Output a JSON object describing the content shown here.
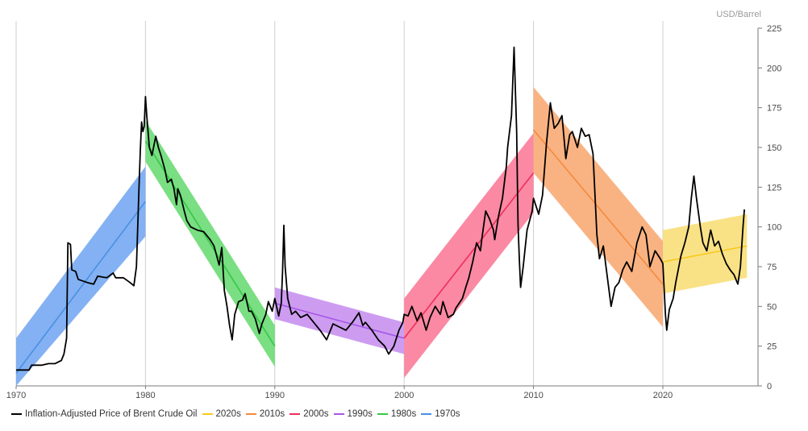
{
  "chart_data": {
    "type": "line",
    "title": "",
    "unit_label": "USD/Barrel",
    "xlabel": "",
    "ylabel": "",
    "xlim": [
      1970,
      2027
    ],
    "ylim": [
      0,
      225
    ],
    "x_ticks": [
      1970,
      1980,
      1990,
      2000,
      2010,
      2020
    ],
    "x_tick_labels": [
      "1970",
      "1980",
      "1990",
      "2000",
      "2010",
      "2020"
    ],
    "y_ticks": [
      0,
      25,
      50,
      75,
      100,
      125,
      150,
      175,
      200,
      225
    ],
    "y_tick_labels": [
      "0",
      "25",
      "50",
      "75",
      "100",
      "125",
      "150",
      "175",
      "200",
      "225"
    ],
    "grid": "vertical",
    "legend_position": "bottom-left",
    "series": [
      {
        "name": "Inflation-Adjusted Price of Brent Crude Oil",
        "color": "#000000",
        "points": [
          [
            1970.0,
            10
          ],
          [
            1971.0,
            10
          ],
          [
            1971.2,
            13
          ],
          [
            1972.0,
            13
          ],
          [
            1972.5,
            14
          ],
          [
            1973.0,
            14
          ],
          [
            1973.5,
            16
          ],
          [
            1973.7,
            20
          ],
          [
            1973.9,
            30
          ],
          [
            1974.0,
            90
          ],
          [
            1974.2,
            89
          ],
          [
            1974.3,
            73
          ],
          [
            1974.6,
            72
          ],
          [
            1974.8,
            67
          ],
          [
            1975.5,
            65
          ],
          [
            1976.0,
            64
          ],
          [
            1976.3,
            69
          ],
          [
            1977.0,
            68
          ],
          [
            1977.5,
            71
          ],
          [
            1977.7,
            68
          ],
          [
            1978.3,
            68
          ],
          [
            1978.8,
            65
          ],
          [
            1979.1,
            63
          ],
          [
            1979.3,
            75
          ],
          [
            1979.5,
            125
          ],
          [
            1979.6,
            148
          ],
          [
            1979.7,
            166
          ],
          [
            1979.8,
            160
          ],
          [
            1979.9,
            163
          ],
          [
            1980.0,
            182
          ],
          [
            1980.1,
            170
          ],
          [
            1980.3,
            150
          ],
          [
            1980.5,
            145
          ],
          [
            1980.8,
            157
          ],
          [
            1981.0,
            150
          ],
          [
            1981.2,
            145
          ],
          [
            1981.5,
            136
          ],
          [
            1981.7,
            128
          ],
          [
            1982.0,
            130
          ],
          [
            1982.2,
            124
          ],
          [
            1982.4,
            114
          ],
          [
            1982.5,
            124
          ],
          [
            1982.7,
            120
          ],
          [
            1983.0,
            110
          ],
          [
            1983.2,
            104
          ],
          [
            1983.5,
            100
          ],
          [
            1984.0,
            98
          ],
          [
            1984.5,
            97
          ],
          [
            1985.0,
            92
          ],
          [
            1985.3,
            88
          ],
          [
            1985.7,
            76
          ],
          [
            1985.9,
            87
          ],
          [
            1986.1,
            60
          ],
          [
            1986.3,
            50
          ],
          [
            1986.5,
            38
          ],
          [
            1986.7,
            29
          ],
          [
            1986.9,
            45
          ],
          [
            1987.2,
            53
          ],
          [
            1987.5,
            54
          ],
          [
            1987.7,
            58
          ],
          [
            1988.0,
            47
          ],
          [
            1988.2,
            47
          ],
          [
            1988.5,
            42
          ],
          [
            1988.8,
            33
          ],
          [
            1989.0,
            39
          ],
          [
            1989.3,
            45
          ],
          [
            1989.5,
            53
          ],
          [
            1989.8,
            47
          ],
          [
            1990.0,
            55
          ],
          [
            1990.3,
            44
          ],
          [
            1990.5,
            52
          ],
          [
            1990.6,
            72
          ],
          [
            1990.7,
            101
          ],
          [
            1990.8,
            75
          ],
          [
            1991.0,
            55
          ],
          [
            1991.3,
            45
          ],
          [
            1991.6,
            47
          ],
          [
            1992.0,
            43
          ],
          [
            1992.5,
            45
          ],
          [
            1993.0,
            40
          ],
          [
            1993.5,
            35
          ],
          [
            1994.0,
            29
          ],
          [
            1994.5,
            39
          ],
          [
            1995.0,
            37
          ],
          [
            1995.5,
            35
          ],
          [
            1996.0,
            40
          ],
          [
            1996.5,
            46
          ],
          [
            1996.8,
            38
          ],
          [
            1997.0,
            40
          ],
          [
            1997.5,
            35
          ],
          [
            1998.0,
            29
          ],
          [
            1998.5,
            25
          ],
          [
            1998.8,
            20
          ],
          [
            1999.2,
            25
          ],
          [
            1999.6,
            35
          ],
          [
            1999.9,
            40
          ],
          [
            2000.0,
            45
          ],
          [
            2000.3,
            44
          ],
          [
            2000.6,
            50
          ],
          [
            2001.0,
            41
          ],
          [
            2001.3,
            46
          ],
          [
            2001.7,
            35
          ],
          [
            2002.0,
            43
          ],
          [
            2002.4,
            50
          ],
          [
            2002.8,
            45
          ],
          [
            2003.0,
            53
          ],
          [
            2003.4,
            43
          ],
          [
            2003.8,
            45
          ],
          [
            2004.0,
            49
          ],
          [
            2004.5,
            55
          ],
          [
            2004.8,
            63
          ],
          [
            2005.0,
            68
          ],
          [
            2005.3,
            78
          ],
          [
            2005.6,
            90
          ],
          [
            2005.9,
            85
          ],
          [
            2006.0,
            92
          ],
          [
            2006.3,
            110
          ],
          [
            2006.6,
            105
          ],
          [
            2006.9,
            98
          ],
          [
            2007.0,
            92
          ],
          [
            2007.3,
            107
          ],
          [
            2007.6,
            118
          ],
          [
            2007.9,
            138
          ],
          [
            2008.0,
            150
          ],
          [
            2008.3,
            170
          ],
          [
            2008.5,
            213
          ],
          [
            2008.7,
            160
          ],
          [
            2008.8,
            102
          ],
          [
            2008.9,
            80
          ],
          [
            2009.0,
            62
          ],
          [
            2009.2,
            75
          ],
          [
            2009.5,
            98
          ],
          [
            2009.9,
            110
          ],
          [
            2010.0,
            118
          ],
          [
            2010.4,
            108
          ],
          [
            2010.7,
            120
          ],
          [
            2011.0,
            152
          ],
          [
            2011.3,
            178
          ],
          [
            2011.6,
            162
          ],
          [
            2011.9,
            165
          ],
          [
            2012.2,
            170
          ],
          [
            2012.5,
            143
          ],
          [
            2012.8,
            158
          ],
          [
            2013.0,
            160
          ],
          [
            2013.4,
            150
          ],
          [
            2013.7,
            162
          ],
          [
            2014.0,
            157
          ],
          [
            2014.3,
            158
          ],
          [
            2014.6,
            146
          ],
          [
            2014.9,
            95
          ],
          [
            2015.1,
            80
          ],
          [
            2015.4,
            88
          ],
          [
            2015.7,
            69
          ],
          [
            2016.0,
            50
          ],
          [
            2016.3,
            62
          ],
          [
            2016.6,
            65
          ],
          [
            2016.9,
            73
          ],
          [
            2017.2,
            78
          ],
          [
            2017.6,
            72
          ],
          [
            2018.0,
            90
          ],
          [
            2018.4,
            100
          ],
          [
            2018.7,
            95
          ],
          [
            2019.0,
            75
          ],
          [
            2019.4,
            85
          ],
          [
            2019.8,
            80
          ],
          [
            2020.0,
            77
          ],
          [
            2020.2,
            45
          ],
          [
            2020.3,
            35
          ],
          [
            2020.5,
            48
          ],
          [
            2020.8,
            55
          ],
          [
            2021.0,
            65
          ],
          [
            2021.4,
            82
          ],
          [
            2021.7,
            90
          ],
          [
            2022.0,
            100
          ],
          [
            2022.2,
            118
          ],
          [
            2022.4,
            132
          ],
          [
            2022.6,
            118
          ],
          [
            2022.9,
            100
          ],
          [
            2023.1,
            90
          ],
          [
            2023.4,
            85
          ],
          [
            2023.7,
            98
          ],
          [
            2024.0,
            88
          ],
          [
            2024.3,
            91
          ],
          [
            2024.6,
            83
          ],
          [
            2024.9,
            77
          ],
          [
            2025.2,
            73
          ],
          [
            2025.5,
            70
          ],
          [
            2025.8,
            64
          ],
          [
            2026.0,
            75
          ],
          [
            2026.2,
            100
          ],
          [
            2026.3,
            111
          ]
        ]
      }
    ],
    "trend_bands": [
      {
        "name": "1970s",
        "color": "#4a90e2",
        "fill": "#78aaf2",
        "x": [
          1970,
          1980
        ],
        "center": [
          8,
          116
        ],
        "halfwidth": 22
      },
      {
        "name": "1980s",
        "color": "#35c748",
        "fill": "#6edc77",
        "x": [
          1980,
          1990
        ],
        "center": [
          154,
          25
        ],
        "halfwidth": 13
      },
      {
        "name": "1990s",
        "color": "#a657e6",
        "fill": "#c994f0",
        "x": [
          1990,
          2000
        ],
        "center": [
          52,
          30
        ],
        "halfwidth": 10
      },
      {
        "name": "2000s",
        "color": "#f02e5e",
        "fill": "#fb7f9b",
        "x": [
          2000,
          2010
        ],
        "center": [
          30,
          134
        ],
        "halfwidth": 25
      },
      {
        "name": "2010s",
        "color": "#f6893a",
        "fill": "#f9ad78",
        "x": [
          2010,
          2020
        ],
        "center": [
          161,
          64
        ],
        "halfwidth": 27
      },
      {
        "name": "2020s",
        "color": "#f8c91e",
        "fill": "#f9df7c",
        "x": [
          2020,
          2026.5
        ],
        "center": [
          78,
          88
        ],
        "halfwidth": 20
      }
    ],
    "legend": [
      {
        "label": "Inflation-Adjusted Price of Brent Crude Oil",
        "color": "#000000"
      },
      {
        "label": "2020s",
        "color": "#f8c91e"
      },
      {
        "label": "2010s",
        "color": "#f6893a"
      },
      {
        "label": "2000s",
        "color": "#f02e5e"
      },
      {
        "label": "1990s",
        "color": "#a657e6"
      },
      {
        "label": "1980s",
        "color": "#35c748"
      },
      {
        "label": "1970s",
        "color": "#4a90e2"
      }
    ]
  }
}
